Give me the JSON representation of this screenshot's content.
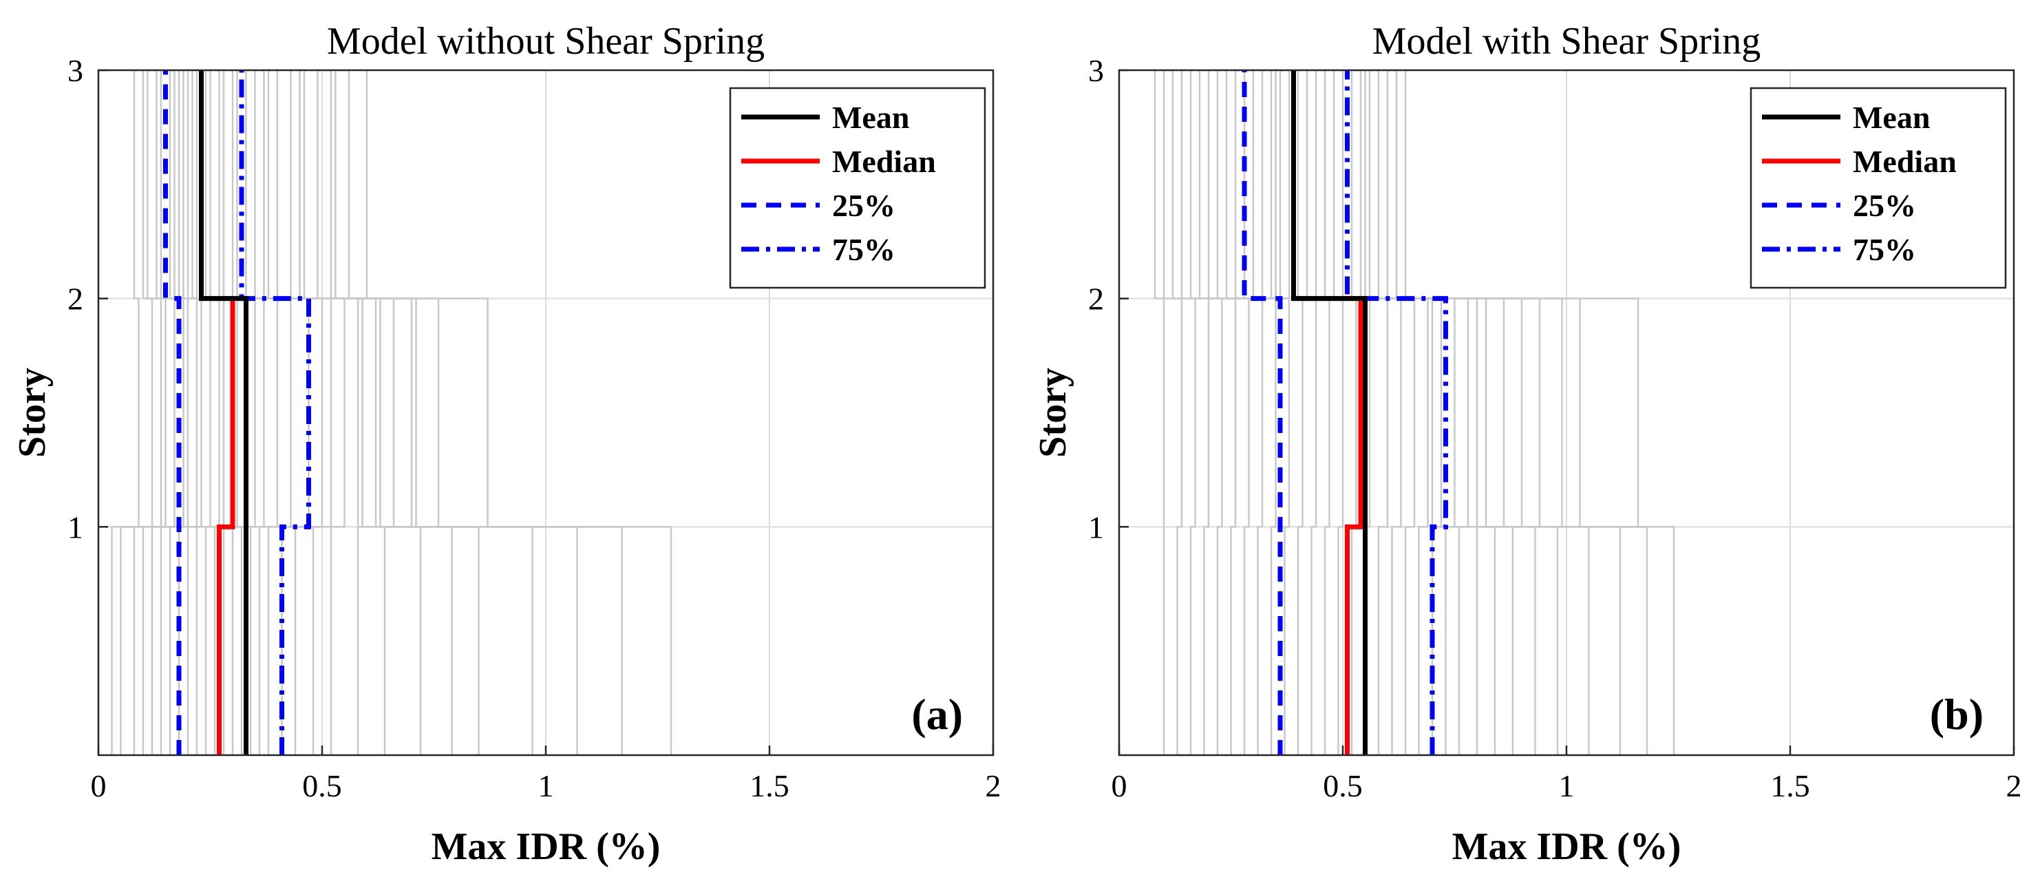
{
  "chart_data": [
    {
      "type": "line",
      "panel_label": "(a)",
      "title": "Model without Shear Spring",
      "xlabel": "Max IDR (%)",
      "ylabel": "Story",
      "xlim": [
        0,
        2
      ],
      "ylim": [
        0,
        3
      ],
      "xticks": [
        0,
        0.5,
        1,
        1.5,
        2
      ],
      "xtick_labels": [
        "0",
        "0.5",
        "1",
        "1.5",
        "2"
      ],
      "yticks": [
        1,
        2,
        3
      ],
      "ytick_labels": [
        "1",
        "2",
        "3"
      ],
      "grid": true,
      "legend_position": "top-right",
      "story_levels": [
        0,
        1,
        2,
        3
      ],
      "series": [
        {
          "name": "Mean",
          "color": "#000000",
          "style": "solid",
          "values": [
            0.33,
            0.33,
            0.23
          ]
        },
        {
          "name": "Median",
          "color": "#ff0000",
          "style": "solid",
          "values": [
            0.27,
            0.3,
            0.23
          ]
        },
        {
          "name": "25%",
          "color": "#0000ff",
          "style": "dashed",
          "values": [
            0.18,
            0.18,
            0.15
          ]
        },
        {
          "name": "75%",
          "color": "#0000ff",
          "style": "dashdot",
          "values": [
            0.41,
            0.47,
            0.32
          ]
        }
      ],
      "records_color": "#c8c8c8",
      "records": [
        [
          0.03,
          0.09,
          0.08
        ],
        [
          0.05,
          0.12,
          0.1
        ],
        [
          0.08,
          0.14,
          0.11
        ],
        [
          0.1,
          0.15,
          0.13
        ],
        [
          0.12,
          0.17,
          0.14
        ],
        [
          0.14,
          0.19,
          0.16
        ],
        [
          0.16,
          0.2,
          0.17
        ],
        [
          0.18,
          0.22,
          0.18
        ],
        [
          0.2,
          0.23,
          0.19
        ],
        [
          0.22,
          0.25,
          0.2
        ],
        [
          0.24,
          0.27,
          0.21
        ],
        [
          0.26,
          0.28,
          0.22
        ],
        [
          0.28,
          0.31,
          0.24
        ],
        [
          0.3,
          0.33,
          0.25
        ],
        [
          0.32,
          0.35,
          0.27
        ],
        [
          0.34,
          0.37,
          0.28
        ],
        [
          0.36,
          0.4,
          0.3
        ],
        [
          0.38,
          0.43,
          0.31
        ],
        [
          0.41,
          0.47,
          0.33
        ],
        [
          0.44,
          0.5,
          0.35
        ],
        [
          0.48,
          0.52,
          0.37
        ],
        [
          0.52,
          0.55,
          0.4
        ],
        [
          0.58,
          0.59,
          0.43
        ],
        [
          0.64,
          0.63,
          0.46
        ],
        [
          0.72,
          0.66,
          0.49
        ],
        [
          0.79,
          0.71,
          0.53
        ],
        [
          0.85,
          0.76,
          0.56
        ],
        [
          0.97,
          0.87,
          0.6
        ],
        [
          1.07,
          0.7,
          0.52
        ],
        [
          1.17,
          0.62,
          0.45
        ],
        [
          1.28,
          0.58,
          0.38
        ]
      ]
    },
    {
      "type": "line",
      "panel_label": "(b)",
      "title": "Model with Shear Spring",
      "xlabel": "Max IDR (%)",
      "ylabel": "Story",
      "xlim": [
        0,
        2
      ],
      "ylim": [
        0,
        3
      ],
      "xticks": [
        0,
        0.5,
        1,
        1.5,
        2
      ],
      "xtick_labels": [
        "0",
        "0.5",
        "1",
        "1.5",
        "2"
      ],
      "yticks": [
        1,
        2,
        3
      ],
      "ytick_labels": [
        "1",
        "2",
        "3"
      ],
      "grid": true,
      "legend_position": "top-right",
      "story_levels": [
        0,
        1,
        2,
        3
      ],
      "series": [
        {
          "name": "Mean",
          "color": "#000000",
          "style": "solid",
          "values": [
            0.55,
            0.55,
            0.39
          ]
        },
        {
          "name": "Median",
          "color": "#ff0000",
          "style": "solid",
          "values": [
            0.51,
            0.54,
            0.39
          ]
        },
        {
          "name": "25%",
          "color": "#0000ff",
          "style": "dashed",
          "values": [
            0.36,
            0.36,
            0.28
          ]
        },
        {
          "name": "75%",
          "color": "#0000ff",
          "style": "dashdot",
          "values": [
            0.7,
            0.73,
            0.51
          ]
        }
      ],
      "records_color": "#c8c8c8",
      "records": [
        [
          0.1,
          0.1,
          0.08
        ],
        [
          0.13,
          0.14,
          0.1
        ],
        [
          0.16,
          0.17,
          0.12
        ],
        [
          0.19,
          0.2,
          0.14
        ],
        [
          0.22,
          0.23,
          0.16
        ],
        [
          0.25,
          0.26,
          0.18
        ],
        [
          0.28,
          0.29,
          0.2
        ],
        [
          0.31,
          0.32,
          0.22
        ],
        [
          0.34,
          0.35,
          0.24
        ],
        [
          0.37,
          0.38,
          0.26
        ],
        [
          0.4,
          0.41,
          0.28
        ],
        [
          0.43,
          0.44,
          0.3
        ],
        [
          0.46,
          0.47,
          0.32
        ],
        [
          0.49,
          0.5,
          0.34
        ],
        [
          0.52,
          0.53,
          0.36
        ],
        [
          0.55,
          0.56,
          0.38
        ],
        [
          0.58,
          0.6,
          0.4
        ],
        [
          0.61,
          0.63,
          0.42
        ],
        [
          0.64,
          0.66,
          0.44
        ],
        [
          0.67,
          0.69,
          0.46
        ],
        [
          0.7,
          0.72,
          0.48
        ],
        [
          0.73,
          0.75,
          0.5
        ],
        [
          0.76,
          0.78,
          0.52
        ],
        [
          0.8,
          0.82,
          0.54
        ],
        [
          0.84,
          0.86,
          0.56
        ],
        [
          0.88,
          0.9,
          0.58
        ],
        [
          0.93,
          0.94,
          0.6
        ],
        [
          0.98,
          0.99,
          0.62
        ],
        [
          1.05,
          1.03,
          0.64
        ],
        [
          1.12,
          1.16,
          0.55
        ],
        [
          1.18,
          0.8,
          0.46
        ],
        [
          1.24,
          0.7,
          0.35
        ]
      ]
    }
  ]
}
